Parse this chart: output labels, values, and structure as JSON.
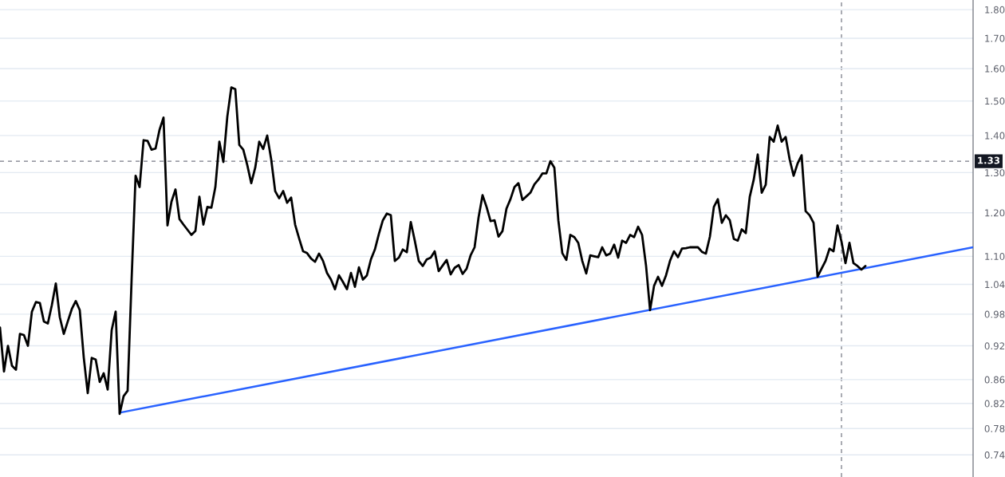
{
  "chart_data": {
    "type": "line",
    "log": true,
    "grid": "y",
    "tick_labels": "y",
    "categories": [
      null,
      null,
      null,
      null,
      null,
      null,
      null,
      null,
      null,
      null,
      null,
      null,
      null,
      null,
      null,
      null,
      null,
      null,
      null,
      null,
      null,
      null,
      null,
      null,
      null,
      null,
      null,
      null,
      null,
      null,
      null,
      null,
      null,
      null,
      null,
      null,
      null,
      null,
      null,
      null,
      null,
      null,
      null,
      null,
      null,
      null,
      null,
      null,
      null,
      null,
      null,
      null,
      null,
      null,
      null,
      null,
      null,
      null,
      null,
      null,
      null,
      null,
      null,
      null,
      null,
      null,
      null,
      null,
      null,
      null,
      null,
      null,
      null,
      null,
      null,
      null,
      null,
      null,
      null,
      null,
      null,
      null,
      null,
      null,
      null,
      null,
      null,
      null,
      null,
      null,
      null,
      null,
      null,
      null,
      null,
      null,
      null,
      null,
      null,
      null,
      null,
      null,
      null,
      null,
      null,
      null,
      null,
      null,
      null,
      null,
      null,
      null,
      null,
      null,
      null,
      null,
      null,
      null,
      null,
      null,
      null,
      null,
      null,
      null,
      null,
      null,
      null,
      null,
      null,
      null,
      null,
      null,
      null,
      null,
      null,
      null,
      null,
      null,
      null,
      null,
      null,
      null,
      null,
      null,
      null,
      null,
      null,
      null,
      null,
      null,
      null,
      null,
      null,
      null,
      null,
      null,
      null,
      null,
      null,
      null,
      null,
      null,
      null,
      null,
      null,
      null,
      null,
      null,
      null,
      null,
      null,
      null,
      null,
      null,
      null,
      null,
      null,
      null,
      null,
      null,
      null,
      null,
      null,
      null,
      null,
      null,
      null,
      null,
      null,
      null,
      null,
      null,
      null,
      null,
      null,
      null,
      null,
      null,
      null,
      null,
      null,
      null,
      null,
      null,
      null,
      null,
      null,
      null,
      null,
      null,
      null,
      null,
      null,
      null,
      null,
      null,
      null,
      null,
      null,
      null,
      null,
      null,
      null,
      null,
      null,
      null,
      null,
      null,
      null,
      null,
      null,
      null,
      null,
      null,
      null,
      null,
      null,
      null,
      null,
      null,
      null,
      null,
      null,
      null,
      null
    ],
    "ylim": [
      0.708,
      1.835
    ],
    "yticks": [
      {
        "value": 0.74,
        "label": "0.74"
      },
      {
        "value": 0.78,
        "label": "0.78"
      },
      {
        "value": 0.82,
        "label": "0.82"
      },
      {
        "value": 0.86,
        "label": "0.86"
      },
      {
        "value": 0.92,
        "label": "0.92"
      },
      {
        "value": 0.98,
        "label": "0.98"
      },
      {
        "value": 1.04,
        "label": "1.04"
      },
      {
        "value": 1.1,
        "label": "1.10"
      },
      {
        "value": 1.2,
        "label": "1.20"
      },
      {
        "value": 1.3,
        "label": "1.30"
      },
      {
        "value": 1.4,
        "label": "1.40"
      },
      {
        "value": 1.5,
        "label": "1.50"
      },
      {
        "value": 1.6,
        "label": "1.60"
      },
      {
        "value": 1.7,
        "label": "1.70"
      },
      {
        "value": 1.8,
        "label": "1.80"
      }
    ],
    "ref_lines": [
      {
        "axis": "y",
        "value": 1.33,
        "label": "1.33",
        "color": "#787b86",
        "line_style": "dashed"
      }
    ],
    "series": [
      {
        "type": "line",
        "color": "#000000",
        "values": [
          0.954,
          0.874,
          0.92,
          0.884,
          0.877,
          0.942,
          0.94,
          0.92,
          0.985,
          1.004,
          1.002,
          0.966,
          0.962,
          0.998,
          1.042,
          0.974,
          0.942,
          0.966,
          0.99,
          1.006,
          0.988,
          0.899,
          0.837,
          0.898,
          0.895,
          0.856,
          0.871,
          0.843,
          0.949,
          0.985,
          0.803,
          0.832,
          0.841,
          1.05,
          1.292,
          1.263,
          1.387,
          1.385,
          1.361,
          1.364,
          1.416,
          1.451,
          1.17,
          1.227,
          1.257,
          1.185,
          1.172,
          1.16,
          1.148,
          1.157,
          1.239,
          1.172,
          1.214,
          1.212,
          1.263,
          1.383,
          1.328,
          1.454,
          1.541,
          1.536,
          1.374,
          1.361,
          1.32,
          1.273,
          1.313,
          1.383,
          1.363,
          1.4,
          1.335,
          1.253,
          1.235,
          1.253,
          1.224,
          1.237,
          1.172,
          1.14,
          1.111,
          1.107,
          1.095,
          1.088,
          1.106,
          1.09,
          1.064,
          1.05,
          1.03,
          1.059,
          1.045,
          1.03,
          1.064,
          1.035,
          1.076,
          1.05,
          1.059,
          1.093,
          1.115,
          1.15,
          1.182,
          1.198,
          1.194,
          1.09,
          1.097,
          1.115,
          1.109,
          1.178,
          1.135,
          1.09,
          1.079,
          1.093,
          1.097,
          1.111,
          1.068,
          1.08,
          1.092,
          1.061,
          1.075,
          1.081,
          1.062,
          1.073,
          1.102,
          1.12,
          1.189,
          1.243,
          1.214,
          1.18,
          1.182,
          1.144,
          1.157,
          1.21,
          1.233,
          1.263,
          1.273,
          1.231,
          1.24,
          1.249,
          1.27,
          1.282,
          1.298,
          1.298,
          1.33,
          1.313,
          1.182,
          1.107,
          1.092,
          1.148,
          1.143,
          1.13,
          1.09,
          1.063,
          1.102,
          1.1,
          1.098,
          1.12,
          1.102,
          1.106,
          1.126,
          1.097,
          1.135,
          1.13,
          1.148,
          1.143,
          1.167,
          1.148,
          1.079,
          0.988,
          1.037,
          1.056,
          1.037,
          1.059,
          1.09,
          1.111,
          1.098,
          1.117,
          1.118,
          1.12,
          1.12,
          1.12,
          1.11,
          1.106,
          1.144,
          1.214,
          1.233,
          1.176,
          1.194,
          1.182,
          1.139,
          1.135,
          1.161,
          1.152,
          1.239,
          1.282,
          1.348,
          1.249,
          1.269,
          1.396,
          1.383,
          1.428,
          1.383,
          1.396,
          1.335,
          1.292,
          1.324,
          1.346,
          1.204,
          1.194,
          1.176,
          1.056,
          1.073,
          1.09,
          1.117,
          1.111,
          1.17,
          1.133,
          1.085,
          1.13,
          1.085,
          1.079,
          1.071,
          1.079,
          null,
          null,
          null,
          null,
          null,
          null,
          null,
          null,
          null,
          null,
          null,
          null,
          null,
          null,
          null,
          null,
          null,
          null,
          null,
          null,
          null,
          null,
          null,
          null,
          null,
          null,
          null
        ]
      },
      {
        "type": "line",
        "color": "#2962ff",
        "values": [
          null,
          null,
          null,
          null,
          null,
          null,
          null,
          null,
          null,
          null,
          null,
          null,
          null,
          null,
          null,
          null,
          null,
          null,
          null,
          null,
          null,
          null,
          null,
          null,
          null,
          null,
          null,
          null,
          null,
          null,
          0.805,
          null,
          null,
          null,
          null,
          null,
          null,
          null,
          null,
          null,
          null,
          null,
          null,
          null,
          null,
          null,
          null,
          null,
          null,
          null,
          null,
          null,
          null,
          null,
          null,
          null,
          null,
          null,
          null,
          null,
          null,
          null,
          null,
          null,
          null,
          null,
          null,
          null,
          null,
          null,
          null,
          null,
          null,
          null,
          null,
          null,
          null,
          null,
          null,
          null,
          null,
          null,
          null,
          null,
          null,
          null,
          null,
          null,
          null,
          null,
          null,
          null,
          null,
          null,
          null,
          null,
          null,
          null,
          null,
          null,
          null,
          null,
          null,
          null,
          null,
          null,
          null,
          null,
          null,
          null,
          null,
          null,
          null,
          null,
          null,
          null,
          null,
          null,
          null,
          null,
          null,
          null,
          null,
          null,
          null,
          null,
          null,
          null,
          null,
          null,
          null,
          null,
          null,
          null,
          null,
          null,
          null,
          null,
          null,
          null,
          null,
          null,
          null,
          null,
          null,
          null,
          null,
          null,
          null,
          null,
          null,
          null,
          null,
          null,
          null,
          null,
          null,
          null,
          null,
          null,
          null,
          null,
          null,
          null,
          null,
          null,
          null,
          null,
          null,
          null,
          null,
          null,
          null,
          null,
          null,
          null,
          null,
          null,
          null,
          null,
          null,
          null,
          null,
          null,
          null,
          null,
          null,
          null,
          null,
          null,
          null,
          null,
          null,
          null,
          null,
          null,
          null,
          null,
          null,
          null,
          null,
          null,
          null,
          null,
          null,
          null,
          null,
          null,
          null,
          null,
          null,
          null,
          null,
          null,
          null,
          null,
          null,
          null,
          null,
          null,
          null,
          null,
          null,
          null,
          null,
          null,
          null,
          null,
          null,
          null,
          null,
          null,
          null,
          null,
          null,
          null,
          null,
          null,
          null,
          null,
          null,
          null,
          null,
          null,
          1.12
        ]
      }
    ]
  }
}
